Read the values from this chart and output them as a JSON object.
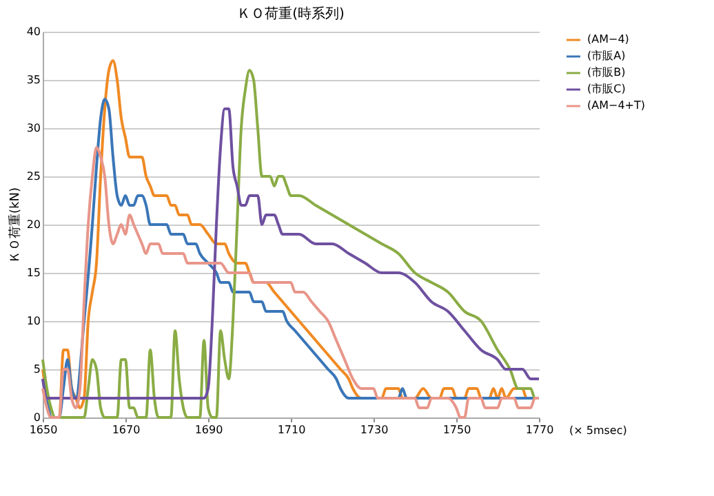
{
  "chart_data": {
    "type": "line",
    "title": "ＫＯ荷重(時系列)",
    "ylabel": "ＫＯ荷重(kN)",
    "annotations": [
      "(× 5msec)"
    ],
    "xlim": [
      1650,
      1770
    ],
    "xticks": [
      1650,
      1670,
      1690,
      1710,
      1730,
      1750,
      1770
    ],
    "ylim": [
      0,
      40
    ],
    "yticks": [
      0,
      5,
      10,
      15,
      20,
      25,
      30,
      35,
      40
    ],
    "grid": "y",
    "legend": "right",
    "marker": "none",
    "line_style": "solid",
    "series": [
      {
        "name": "(AM−4)",
        "color": "#f08a24",
        "x": [
          1650,
          1651,
          1652,
          1654,
          1655,
          1656,
          1657,
          1658,
          1659,
          1660,
          1661,
          1662,
          1663,
          1664,
          1665,
          1666,
          1667,
          1668,
          1669,
          1670,
          1671,
          1672,
          1674,
          1675,
          1676,
          1677,
          1680,
          1681,
          1682,
          1683,
          1685,
          1686,
          1688,
          1690,
          1692,
          1694,
          1695,
          1697,
          1699,
          1700,
          1701,
          1704,
          1706,
          1708,
          1710,
          1712,
          1714,
          1716,
          1718,
          1720,
          1722,
          1724,
          1725,
          1727,
          1730,
          1732,
          1733,
          1736,
          1737,
          1740,
          1742,
          1744,
          1746,
          1747,
          1749,
          1750,
          1752,
          1753,
          1755,
          1756,
          1758,
          1759,
          1760,
          1761,
          1762,
          1764,
          1766,
          1767,
          1770
        ],
        "values": [
          5,
          2,
          0,
          0,
          7,
          7,
          3,
          2,
          1,
          2,
          10,
          13,
          16,
          25,
          32,
          36,
          37,
          35,
          31,
          29,
          27,
          27,
          27,
          25,
          24,
          23,
          23,
          22,
          22,
          21,
          21,
          20,
          20,
          19,
          18,
          18,
          17,
          16,
          16,
          15,
          14,
          14,
          13,
          12,
          11,
          10,
          9,
          8,
          7,
          6,
          5,
          4,
          3,
          2,
          2,
          2,
          3,
          3,
          2,
          2,
          3,
          2,
          2,
          3,
          3,
          2,
          2,
          3,
          3,
          2,
          2,
          3,
          2,
          3,
          2,
          3,
          3,
          2,
          2
        ]
      },
      {
        "name": "(市販A)",
        "color": "#3a76b8",
        "x": [
          1650,
          1651,
          1652,
          1654,
          1655,
          1656,
          1657,
          1658,
          1660,
          1662,
          1663,
          1664,
          1665,
          1666,
          1667,
          1668,
          1669,
          1670,
          1671,
          1672,
          1673,
          1674,
          1675,
          1676,
          1680,
          1681,
          1684,
          1685,
          1687,
          1688,
          1690,
          1692,
          1693,
          1695,
          1696,
          1700,
          1701,
          1703,
          1704,
          1708,
          1709,
          1711,
          1713,
          1715,
          1717,
          1719,
          1721,
          1722,
          1724,
          1736,
          1737,
          1738,
          1770
        ],
        "values": [
          4,
          2,
          0,
          0,
          3,
          6,
          3,
          2,
          10,
          20,
          26,
          31,
          33,
          32,
          27,
          23,
          22,
          23,
          22,
          22,
          23,
          23,
          22,
          20,
          20,
          19,
          19,
          18,
          18,
          17,
          16,
          15,
          14,
          14,
          13,
          13,
          12,
          12,
          11,
          11,
          10,
          9,
          8,
          7,
          6,
          5,
          4,
          3,
          2,
          2,
          3,
          2,
          2
        ]
      },
      {
        "name": "(市販B)",
        "color": "#8aac45",
        "x": [
          1650,
          1651,
          1652,
          1653,
          1660,
          1661,
          1662,
          1663,
          1664,
          1665,
          1668,
          1669,
          1670,
          1671,
          1672,
          1673,
          1675,
          1676,
          1677,
          1678,
          1681,
          1682,
          1683,
          1684,
          1685,
          1688,
          1689,
          1690,
          1691,
          1692,
          1693,
          1694,
          1695,
          1696,
          1697,
          1698,
          1699,
          1700,
          1701,
          1702,
          1703,
          1705,
          1706,
          1707,
          1708,
          1709,
          1710,
          1712,
          1716,
          1720,
          1724,
          1728,
          1732,
          1736,
          1740,
          1744,
          1748,
          1752,
          1756,
          1760,
          1763,
          1765,
          1768,
          1769,
          1770
        ],
        "values": [
          6,
          3,
          1,
          0,
          0,
          3,
          6,
          5,
          1,
          0,
          0,
          6,
          6,
          1,
          1,
          0,
          0,
          7,
          2,
          0,
          0,
          9,
          4,
          1,
          0,
          0,
          8,
          1,
          0,
          0,
          9,
          6,
          4,
          10,
          20,
          30,
          34,
          36,
          35,
          30,
          25,
          25,
          24,
          25,
          25,
          24,
          23,
          23,
          22,
          21,
          20,
          19,
          18,
          17,
          15,
          14,
          13,
          11,
          10,
          7,
          5,
          3,
          3,
          2,
          2
        ]
      },
      {
        "name": "(市販C)",
        "color": "#6e50a0",
        "x": [
          1650,
          1651,
          1689,
          1690,
          1691,
          1692,
          1693,
          1694,
          1695,
          1696,
          1697,
          1698,
          1699,
          1700,
          1702,
          1703,
          1704,
          1706,
          1707,
          1708,
          1712,
          1716,
          1720,
          1724,
          1728,
          1732,
          1736,
          1740,
          1744,
          1748,
          1752,
          1756,
          1760,
          1762,
          1766,
          1768,
          1770
        ],
        "values": [
          4,
          2,
          2,
          3,
          10,
          20,
          28,
          32,
          32,
          26,
          24,
          22,
          22,
          23,
          23,
          20,
          21,
          21,
          20,
          19,
          19,
          18,
          18,
          17,
          16,
          15,
          15,
          14,
          12,
          11,
          9,
          7,
          6,
          5,
          5,
          4,
          4
        ]
      },
      {
        "name": "(AM−4+T)",
        "color": "#e8968a",
        "x": [
          1650,
          1651,
          1652,
          1654,
          1655,
          1656,
          1657,
          1658,
          1659,
          1660,
          1661,
          1662,
          1663,
          1664,
          1665,
          1666,
          1667,
          1668,
          1669,
          1670,
          1671,
          1672,
          1673,
          1674,
          1675,
          1676,
          1678,
          1679,
          1684,
          1685,
          1693,
          1695,
          1700,
          1701,
          1710,
          1711,
          1713,
          1715,
          1717,
          1719,
          1721,
          1723,
          1725,
          1727,
          1730,
          1731,
          1740,
          1741,
          1743,
          1744,
          1748,
          1750,
          1751,
          1752,
          1753,
          1756,
          1757,
          1760,
          1761,
          1764,
          1765,
          1768,
          1769,
          1770
        ],
        "values": [
          3,
          1,
          0,
          0,
          5,
          5,
          2,
          1,
          3,
          12,
          20,
          25,
          28,
          27,
          25,
          20,
          18,
          19,
          20,
          19,
          21,
          20,
          19,
          18,
          17,
          18,
          18,
          17,
          17,
          16,
          16,
          15,
          15,
          14,
          14,
          13,
          13,
          12,
          11,
          10,
          8,
          6,
          4,
          3,
          3,
          2,
          2,
          1,
          1,
          2,
          2,
          1,
          0,
          0,
          2,
          2,
          1,
          1,
          2,
          2,
          1,
          1,
          2,
          2
        ]
      }
    ]
  }
}
